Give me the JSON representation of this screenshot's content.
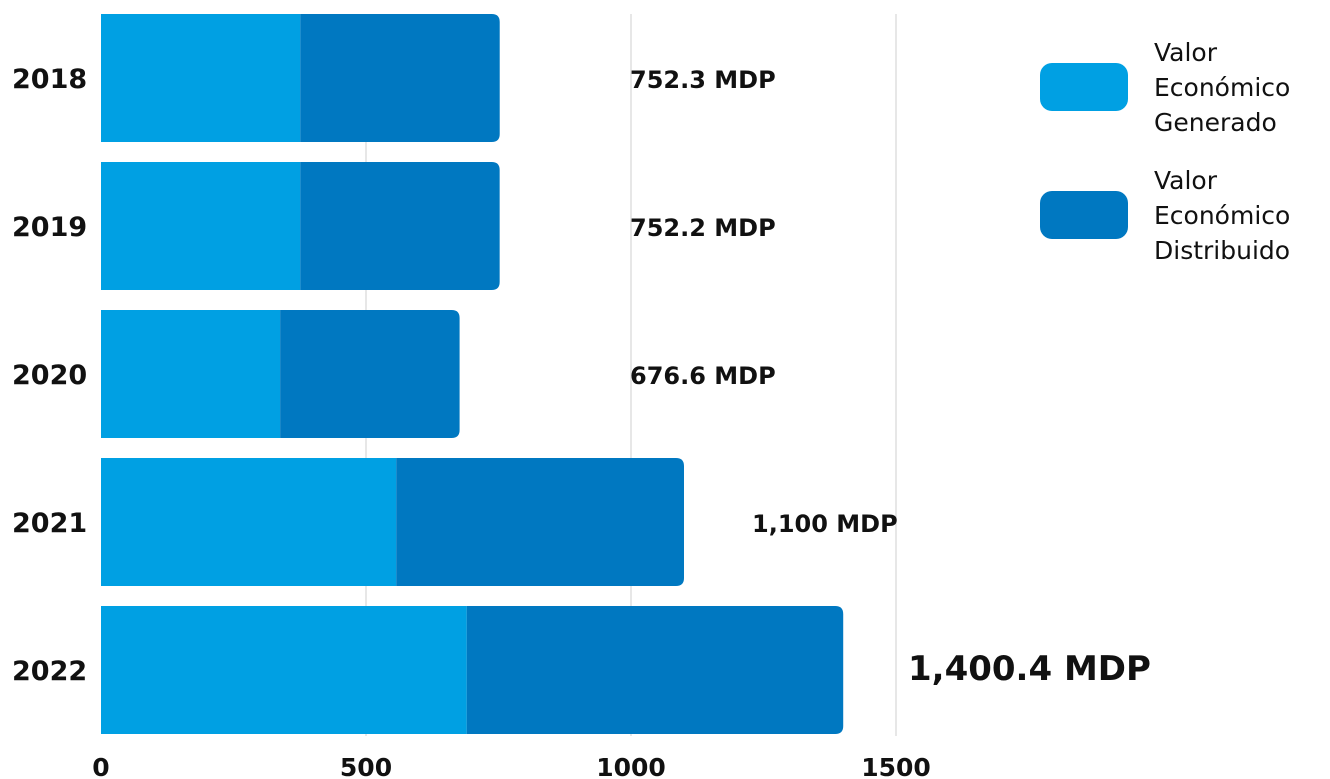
{
  "chart_data": {
    "type": "bar",
    "orientation": "horizontal",
    "stacked": true,
    "categories": [
      "2018",
      "2019",
      "2020",
      "2021",
      "2022"
    ],
    "series": [
      {
        "name": "Valor Económico Generado",
        "values": [
          376,
          376,
          338,
          557,
          690
        ],
        "color": "#00A0E3"
      },
      {
        "name": "Valor Económico Distribuido",
        "values": [
          376.3,
          376.2,
          338.6,
          543,
          710.4
        ],
        "color": "#0078C1"
      }
    ],
    "data_labels": [
      "752.3 MDP",
      "752.2 MDP",
      "676.6 MDP",
      "1,100 MDP",
      "1,400.4 MDP"
    ],
    "xticks": [
      0,
      500,
      1000,
      1500
    ],
    "xlim": [
      0,
      1500
    ],
    "grid": true,
    "legend_position": "top-right",
    "title": "",
    "xlabel": "",
    "ylabel": ""
  }
}
